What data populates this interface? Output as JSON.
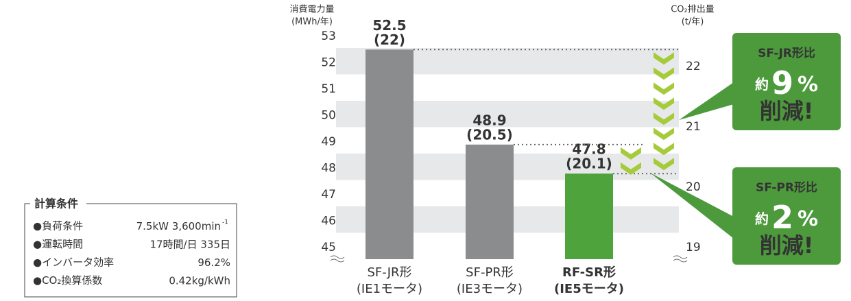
{
  "chart_data": {
    "type": "bar",
    "y_label": [
      "消費電力量",
      "(MWh/年)"
    ],
    "y2_label": [
      "CO₂排出量",
      "(t/年)"
    ],
    "categories": [
      [
        "SF-JR形",
        "(IE1モータ)"
      ],
      [
        "SF-PR形",
        "(IE3モータ)"
      ],
      [
        "RF-SR形",
        "(IE5モータ)"
      ]
    ],
    "series": [
      {
        "values": [
          52.5,
          48.9,
          47.8
        ],
        "colors": [
          "#8b8c8e",
          "#8b8c8e",
          "#4ea33c"
        ]
      },
      {
        "axis": "y2",
        "values": [
          22,
          20.5,
          20.1
        ],
        "value_labels": [
          "(22)",
          "(20.5)",
          "(20.1)"
        ]
      }
    ],
    "ylim": [
      45,
      53
    ],
    "yticks": [
      45,
      46,
      47,
      48,
      49,
      50,
      51,
      52,
      53
    ],
    "y2lim": [
      19,
      22.5
    ],
    "y2ticks": [
      19,
      20,
      21,
      22
    ],
    "band_color": "#e7e8e9",
    "chevron_color": "#a6cb3a",
    "callouts": [
      {
        "title": "SF-JR形比",
        "prefix": "約",
        "value": 9,
        "unit": "%",
        "suffix": "削減!",
        "color": "#4d9a3d"
      },
      {
        "title": "SF-PR形比",
        "prefix": "約",
        "value": 2,
        "unit": "%",
        "suffix": "削減!",
        "color": "#4d9a3d"
      }
    ]
  },
  "conditions": {
    "title": "計算条件",
    "rows": [
      [
        "●負荷条件",
        "7.5kW 3,600min",
        "-1"
      ],
      [
        "●運転時間",
        "17時間/日 335日"
      ],
      [
        "●インバータ効率",
        "96.2%"
      ],
      [
        "●CO₂換算係数",
        "0.42kg/kWh"
      ]
    ]
  }
}
